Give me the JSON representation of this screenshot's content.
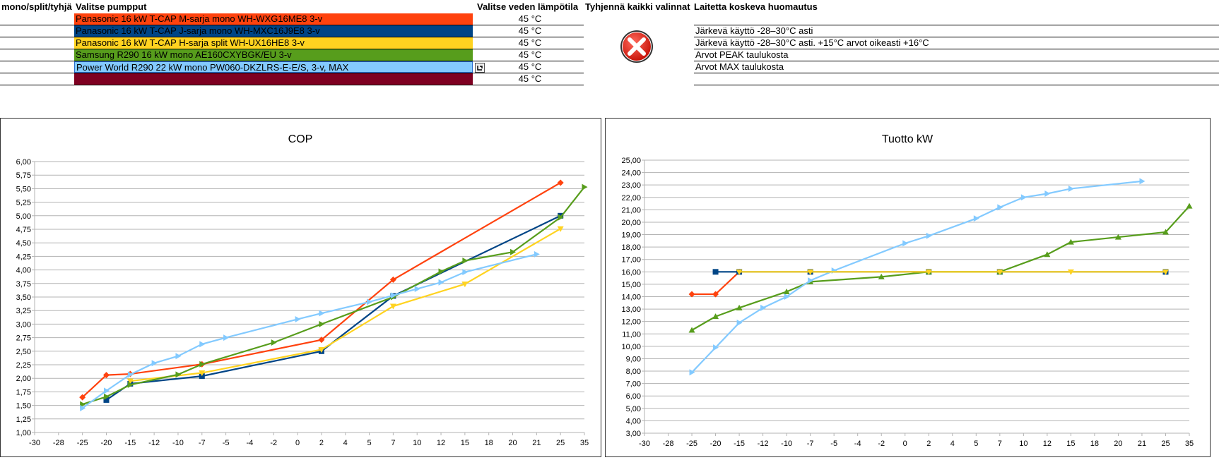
{
  "headers": {
    "mode": "mono/split/tyhjä",
    "pumps": "Valitse pumpput",
    "water_temp": "Valitse veden lämpötila",
    "clear_all": "Tyhjennä kaikki valinnat",
    "notes": "Laitetta koskeva huomautus"
  },
  "rows": [
    {
      "pump": "Panasonic 16 kW T-CAP M-sarja mono WH-WXG16ME8 3-v",
      "color": "#ff420e",
      "temp": "45 °C"
    },
    {
      "pump": "Panasonic 16 kW T-CAP J-sarja mono WH-MXC16J9E8 3-v",
      "color": "#004586",
      "temp": "45 °C"
    },
    {
      "pump": "Panasonic 16 kW T-CAP H-sarja split WH-UX16HE8 3-v",
      "color": "#ffd320",
      "temp": "45 °C"
    },
    {
      "pump": "Samsung R290 16 kW mono AE160CXYBGK/EU 3-v",
      "color": "#579d1c",
      "temp": "45 °C"
    },
    {
      "pump": "Power World R290 22 kW mono PW060-DKZLRS-E-E/S, 3-v, MAX",
      "color": "#83caff",
      "temp": "45 °C"
    },
    {
      "pump": "",
      "color": "#7e0021",
      "temp": "45 °C"
    }
  ],
  "notes": [
    "Järkevä käyttö -28–30°C asti",
    "Järkevä käyttö -28–30°C asti. +15°C arvot oikeasti +16°C",
    "Arvot PEAK taulukosta",
    "Arvot MAX taulukosta"
  ],
  "icons": {
    "clear": "clear-all-x-icon",
    "dropdown": "dropdown-arrow-icon"
  },
  "chart_data": [
    {
      "type": "line",
      "title": "COP",
      "xlim": [
        -30,
        35
      ],
      "ylim": [
        1.0,
        6.0
      ],
      "x_ticks": [
        -30,
        -28,
        -25,
        -20,
        -15,
        -12,
        -10,
        -7,
        -5,
        -4,
        -2,
        0,
        2,
        4,
        5,
        7,
        10,
        12,
        15,
        18,
        20,
        21,
        25,
        35
      ],
      "y_ticks": [
        "1,00",
        "1,25",
        "1,50",
        "1,75",
        "2,00",
        "2,25",
        "2,50",
        "2,75",
        "3,00",
        "3,25",
        "3,50",
        "3,75",
        "4,00",
        "4,25",
        "4,50",
        "4,75",
        "5,00",
        "5,25",
        "5,50",
        "5,75",
        "6,00"
      ],
      "series": [
        {
          "name": "Panasonic WH-WXG16ME8",
          "color": "#ff420e",
          "marker": "diamond",
          "points": [
            [
              -25,
              1.65
            ],
            [
              -20,
              2.06
            ],
            [
              -15,
              2.08
            ],
            [
              -7,
              2.26
            ],
            [
              2,
              2.71
            ],
            [
              7,
              3.82
            ],
            [
              25,
              5.61
            ]
          ]
        },
        {
          "name": "Panasonic WH-MXC16J9E8",
          "color": "#004586",
          "marker": "square",
          "points": [
            [
              -20,
              1.6
            ],
            [
              -15,
              1.9
            ],
            [
              -7,
              2.04
            ],
            [
              2,
              2.5
            ],
            [
              7,
              3.52
            ],
            [
              25,
              5.0
            ]
          ]
        },
        {
          "name": "Panasonic WH-UX16HE8",
          "color": "#ffd320",
          "marker": "triangle-down",
          "points": [
            [
              -15,
              1.95
            ],
            [
              -7,
              2.1
            ],
            [
              2,
              2.53
            ],
            [
              7,
              3.33
            ],
            [
              15,
              3.74
            ],
            [
              25,
              4.76
            ]
          ]
        },
        {
          "name": "Samsung AE160CXYBGK/EU",
          "color": "#579d1c",
          "marker": "triangle-right",
          "points": [
            [
              -25,
              1.52
            ],
            [
              -20,
              1.66
            ],
            [
              -15,
              1.88
            ],
            [
              -10,
              2.07
            ],
            [
              -7,
              2.26
            ],
            [
              -2,
              2.66
            ],
            [
              2,
              3.0
            ],
            [
              7,
              3.5
            ],
            [
              12,
              3.97
            ],
            [
              15,
              4.17
            ],
            [
              20,
              4.33
            ],
            [
              25,
              4.97
            ],
            [
              35,
              5.53
            ]
          ]
        },
        {
          "name": "Power World PW060-DKZLRS-E-E/S",
          "color": "#83caff",
          "marker": "triangle-right",
          "points": [
            [
              -25,
              1.45
            ],
            [
              -20,
              1.77
            ],
            [
              -15,
              2.07
            ],
            [
              -12,
              2.28
            ],
            [
              -10,
              2.41
            ],
            [
              -7,
              2.63
            ],
            [
              -5,
              2.75
            ],
            [
              0,
              3.09
            ],
            [
              2,
              3.2
            ],
            [
              5,
              3.41
            ],
            [
              7,
              3.53
            ],
            [
              10,
              3.65
            ],
            [
              12,
              3.77
            ],
            [
              15,
              3.96
            ],
            [
              21,
              4.29
            ]
          ]
        }
      ]
    },
    {
      "type": "line",
      "title": "Tuotto kW",
      "xlim": [
        -30,
        35
      ],
      "ylim": [
        3.0,
        25.0
      ],
      "x_ticks": [
        -30,
        -28,
        -25,
        -20,
        -15,
        -12,
        -10,
        -7,
        -5,
        -4,
        -2,
        0,
        2,
        4,
        5,
        7,
        10,
        12,
        15,
        18,
        20,
        21,
        25,
        35
      ],
      "y_ticks": [
        "3,00",
        "4,00",
        "5,00",
        "6,00",
        "7,00",
        "8,00",
        "9,00",
        "10,00",
        "11,00",
        "12,00",
        "13,00",
        "14,00",
        "15,00",
        "16,00",
        "17,00",
        "18,00",
        "19,00",
        "20,00",
        "21,00",
        "22,00",
        "23,00",
        "24,00",
        "25,00"
      ],
      "series": [
        {
          "name": "Panasonic WH-WXG16ME8",
          "color": "#ff420e",
          "marker": "diamond",
          "points": [
            [
              -25,
              14.2
            ],
            [
              -20,
              14.2
            ],
            [
              -15,
              16.0
            ]
          ]
        },
        {
          "name": "Panasonic WH-MXC16J9E8",
          "color": "#004586",
          "marker": "square",
          "points": [
            [
              -20,
              16.0
            ],
            [
              -15,
              16.0
            ],
            [
              -7,
              16.0
            ],
            [
              2,
              16.0
            ],
            [
              7,
              16.0
            ],
            [
              25,
              16.0
            ]
          ]
        },
        {
          "name": "Samsung AE160CXYBGK/EU",
          "color": "#579d1c",
          "marker": "triangle-up",
          "points": [
            [
              -25,
              11.3
            ],
            [
              -20,
              12.4
            ],
            [
              -15,
              13.1
            ],
            [
              -10,
              14.4
            ],
            [
              -7,
              15.2
            ],
            [
              -2,
              15.6
            ],
            [
              2,
              16.0
            ],
            [
              7,
              16.0
            ],
            [
              12,
              17.4
            ],
            [
              15,
              18.4
            ],
            [
              20,
              18.8
            ],
            [
              25,
              19.2
            ],
            [
              35,
              21.3
            ]
          ]
        },
        {
          "name": "Power World PW060-DKZLRS-E-E/S",
          "color": "#83caff",
          "marker": "triangle-right",
          "points": [
            [
              -25,
              7.9
            ],
            [
              -20,
              9.9
            ],
            [
              -15,
              11.9
            ],
            [
              -12,
              13.1
            ],
            [
              -10,
              14.0
            ],
            [
              -7,
              15.3
            ],
            [
              -5,
              16.1
            ],
            [
              0,
              18.3
            ],
            [
              2,
              18.9
            ],
            [
              5,
              20.3
            ],
            [
              7,
              21.2
            ],
            [
              10,
              22.0
            ],
            [
              12,
              22.3
            ],
            [
              15,
              22.7
            ],
            [
              21,
              23.3
            ]
          ]
        },
        {
          "name": "Panasonic WH-UX16HE8",
          "color": "#ffd320",
          "marker": "triangle-down",
          "points": [
            [
              -15,
              16.0
            ],
            [
              -7,
              16.0
            ],
            [
              2,
              16.0
            ],
            [
              7,
              16.0
            ],
            [
              15,
              16.0
            ],
            [
              25,
              16.0
            ]
          ]
        }
      ]
    }
  ]
}
